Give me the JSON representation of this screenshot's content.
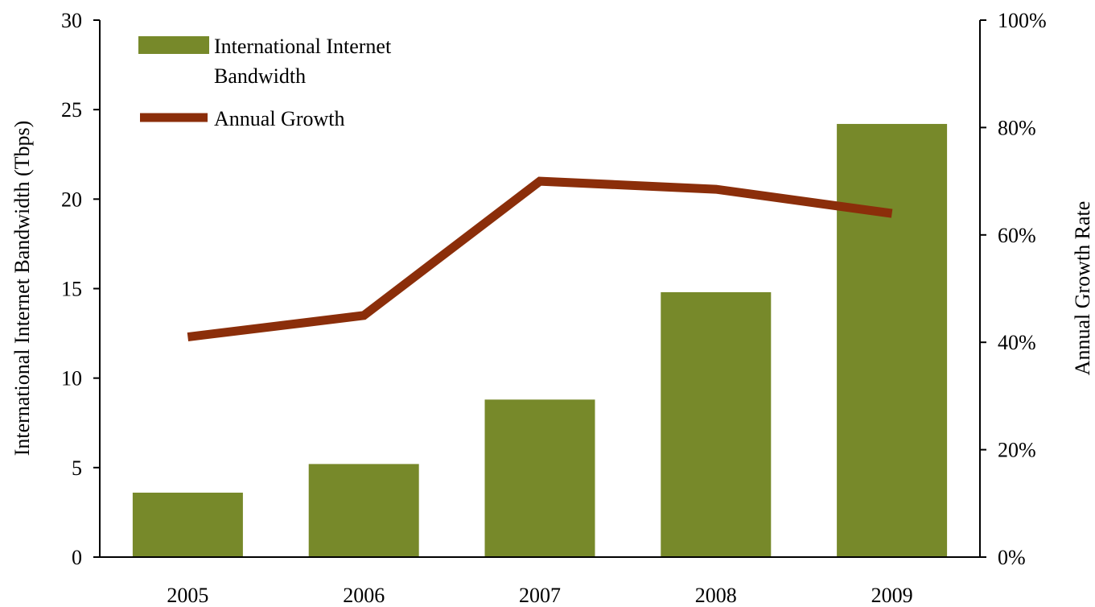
{
  "chart_data": {
    "type": "bar",
    "categories": [
      "2005",
      "2006",
      "2007",
      "2008",
      "2009"
    ],
    "series": [
      {
        "name": "International Internet Bandwidth",
        "type": "bar",
        "axis": "left",
        "values": [
          3.6,
          5.2,
          8.8,
          14.8,
          24.2
        ],
        "color": "#77892A"
      },
      {
        "name": "Annual Growth",
        "type": "line",
        "axis": "right",
        "values": [
          41,
          45,
          70,
          68.5,
          64
        ],
        "color": "#8B2E0A"
      }
    ],
    "title": "",
    "xlabel": "",
    "ylabel": "International Internet Bandwidth (Tbps)",
    "y2label": "Annual Growth Rate",
    "ylim": [
      0,
      30
    ],
    "y2lim": [
      0,
      100
    ],
    "yticks": [
      "0",
      "5",
      "10",
      "15",
      "20",
      "25",
      "30"
    ],
    "y2ticks": [
      "0%",
      "20%",
      "40%",
      "60%",
      "80%",
      "100%"
    ],
    "legend": {
      "placement": "top-left",
      "entries": [
        {
          "label_lines": [
            "International Internet",
            "Bandwidth"
          ]
        },
        {
          "label_lines": [
            "Annual Growth"
          ]
        }
      ]
    },
    "grid": false
  }
}
